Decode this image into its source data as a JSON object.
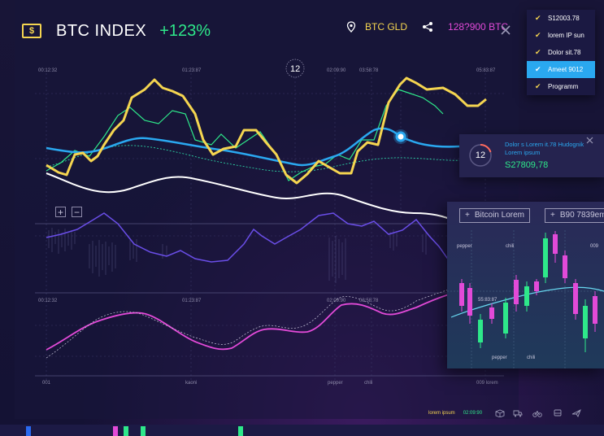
{
  "header": {
    "title": "BTC INDEX",
    "change": "+123%",
    "gold_label": "BTC GLD",
    "btc_value": "128?900 BTC"
  },
  "top_timestamps": [
    "00:12:32",
    "01:23:87",
    "02:09:90",
    "03:58:78",
    "05:83:87"
  ],
  "marker_label": "12",
  "mid_timestamps": [
    "00:12:32",
    "01:23:87",
    "02:09:90",
    "03:58:78"
  ],
  "bottom_labels": [
    "001",
    "kaoni",
    "pepper",
    "chili",
    "009 lorem"
  ],
  "dropdown": {
    "items": [
      {
        "label": "S12003.78",
        "active": false
      },
      {
        "label": "lorem IP sun",
        "active": false
      },
      {
        "label": "Dolor sit.78",
        "active": false
      },
      {
        "label": "Ameet 9012",
        "active": true
      },
      {
        "label": "Programm",
        "active": false
      }
    ]
  },
  "info_card": {
    "ring_value": "12",
    "description": "Dolor s Lorem it.78 Hudognik Lorem ipsum",
    "value": "S27809,78"
  },
  "candle_panel": {
    "tab1": "Bitcoin Lorem",
    "tab2": "B90 7839em",
    "labels_top": [
      "pepper",
      "chili",
      "009"
    ],
    "labels_mid": "55:83:87",
    "labels_bottom": [
      "pepper",
      "chili"
    ]
  },
  "footer": {
    "legend_yellow": "lorem ipsum",
    "legend_green": "02:09:90"
  },
  "colors": {
    "yellow": "#f5d550",
    "green": "#2ee88a",
    "blue": "#2aa8f0",
    "magenta": "#e24ad8",
    "purple": "#6a4ee8"
  }
}
